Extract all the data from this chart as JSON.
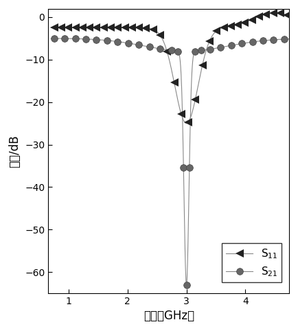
{
  "title": "",
  "xlabel": "频率（GHz）",
  "ylabel_chinese": "幅度",
  "ylabel_db": "dB",
  "xlim": [
    0.65,
    4.75
  ],
  "ylim": [
    -65,
    2
  ],
  "yticks": [
    0,
    -10,
    -20,
    -30,
    -40,
    -50,
    -60
  ],
  "xticks": [
    1,
    2,
    3,
    4
  ],
  "background_color": "#ffffff",
  "s11_color": "#222222",
  "s21_color": "#555555",
  "line_color": "#888888",
  "legend_s11": "S$_{11}$",
  "legend_s21": "S$_{21}$"
}
